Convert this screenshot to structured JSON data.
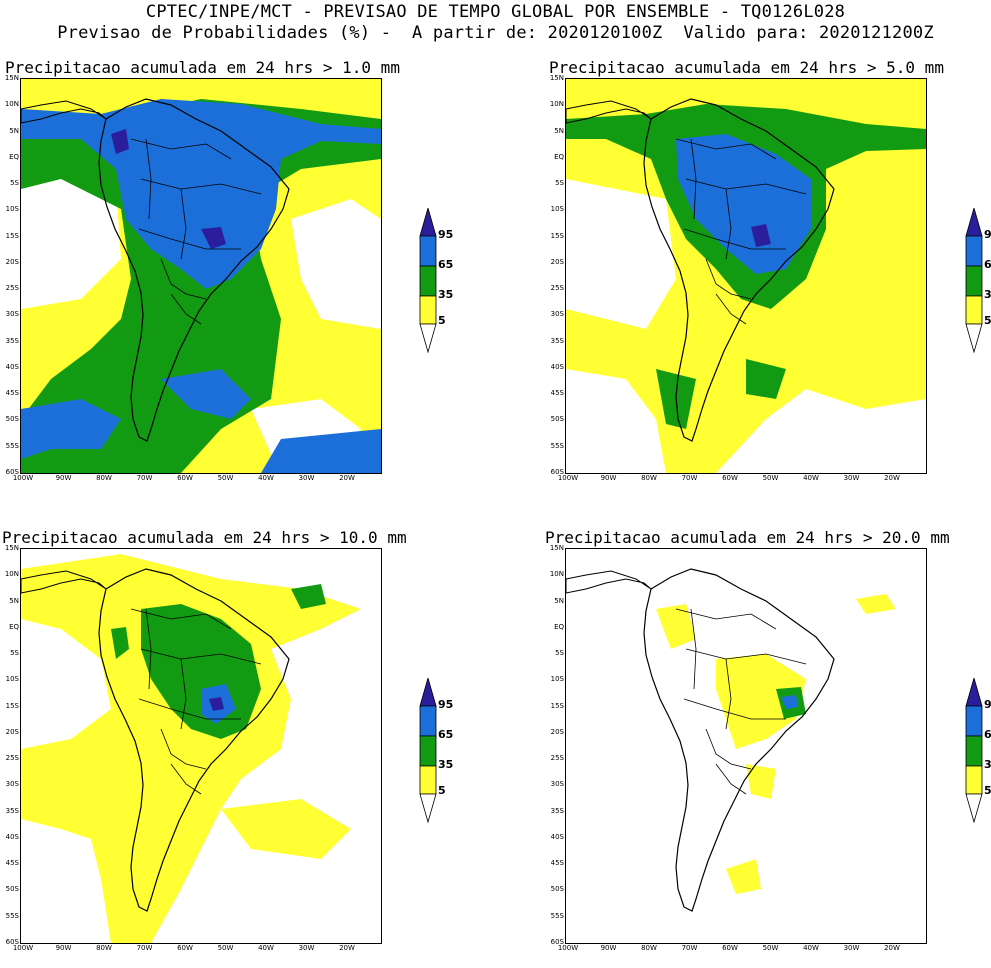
{
  "header": {
    "line1": "CPTEC/INPE/MCT - PREVISAO DE TEMPO GLOBAL POR ENSEMBLE - TQ0126L028",
    "line2": "Previsao de Probabilidades (%) -  A partir de: 2020120100Z  Valido para: 2020121200Z"
  },
  "panels": [
    {
      "title": "Precipitacao acumulada em 24 hrs > 1.0 mm",
      "level": "1.0"
    },
    {
      "title": "Precipitacao acumulada em 24 hrs > 5.0 mm",
      "level": "5.0"
    },
    {
      "title": "Precipitacao acumulada em 24 hrs > 10.0 mm",
      "level": "10.0"
    },
    {
      "title": "Precipitacao acumulada em 24 hrs > 20.0 mm",
      "level": "20.0"
    }
  ],
  "axes": {
    "lat_labels": [
      "15N",
      "10N",
      "5N",
      "EQ",
      "5S",
      "10S",
      "15S",
      "20S",
      "25S",
      "30S",
      "35S",
      "40S",
      "45S",
      "50S",
      "55S",
      "60S"
    ],
    "lon_labels": [
      "100W",
      "90W",
      "80W",
      "70W",
      "60W",
      "50W",
      "40W",
      "30W",
      "20W"
    ]
  },
  "colorbar": {
    "levels": [
      "95",
      "65",
      "35",
      "5"
    ],
    "colors": {
      "c5": "#ffff33",
      "c35": "#129a12",
      "c65": "#1c6fd8",
      "c95": "#2b1e9c"
    }
  }
}
